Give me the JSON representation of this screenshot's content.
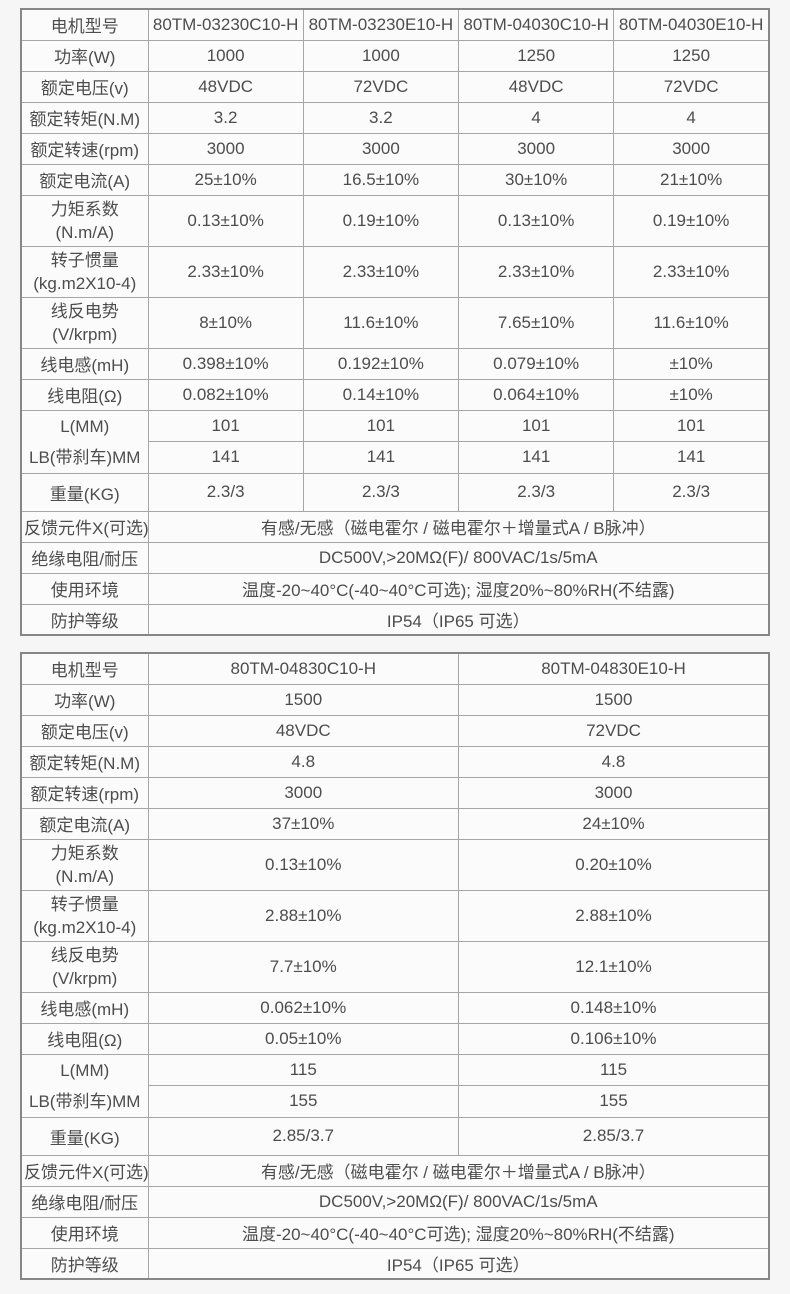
{
  "colors": {
    "page_background": "#f6f6f7",
    "cell_background": "#fbfbfc",
    "border_outer": "#878787",
    "border_inner": "#a6a6a6",
    "text": "#4d4d4d"
  },
  "tables": [
    {
      "model_row": {
        "label": "电机型号",
        "values": [
          "80TM-03230C10-H",
          "80TM-03230E10-H",
          "80TM-04030C10-H",
          "80TM-04030E10-H"
        ]
      },
      "rows": [
        {
          "label": "功率(W)",
          "values": [
            "1000",
            "1000",
            "1250",
            "1250"
          ]
        },
        {
          "label": "额定电压(v)",
          "values": [
            "48VDC",
            "72VDC",
            "48VDC",
            "72VDC"
          ]
        },
        {
          "label": "额定转矩(N.M)",
          "values": [
            "3.2",
            "3.2",
            "4",
            "4"
          ]
        },
        {
          "label": "额定转速(rpm)",
          "values": [
            "3000",
            "3000",
            "3000",
            "3000"
          ]
        },
        {
          "label": "额定电流(A)",
          "values": [
            "25±10%",
            "16.5±10%",
            "30±10%",
            "21±10%"
          ]
        },
        {
          "label": "力矩系数",
          "label2": "(N.m/A)",
          "values": [
            "0.13±10%",
            "0.19±10%",
            "0.13±10%",
            "0.19±10%"
          ]
        },
        {
          "label": "转子惯量",
          "label2": "(kg.m2X10-4)",
          "values": [
            "2.33±10%",
            "2.33±10%",
            "2.33±10%",
            "2.33±10%"
          ]
        },
        {
          "label": "线反电势",
          "label2": "(V/krpm)",
          "values": [
            "8±10%",
            "11.6±10%",
            "7.65±10%",
            "11.6±10%"
          ]
        },
        {
          "label": "线电感(mH)",
          "values": [
            "0.398±10%",
            "0.192±10%",
            "0.079±10%",
            "±10%"
          ]
        },
        {
          "label": "线电阻(Ω)",
          "values": [
            "0.082±10%",
            "0.14±10%",
            "0.064±10%",
            "±10%"
          ]
        }
      ],
      "length_rows": {
        "label_l": "L(MM)",
        "values_l": [
          "101",
          "101",
          "101",
          "101"
        ],
        "label_lb": "LB(带刹车)MM",
        "values_lb": [
          "141",
          "141",
          "141",
          "141"
        ]
      },
      "weight_row": {
        "label": "重量(KG)",
        "values": [
          "2.3/3",
          "2.3/3",
          "2.3/3",
          "2.3/3"
        ]
      },
      "full_rows": [
        {
          "label": "反馈元件X(可选)",
          "value": "有感/无感（磁电霍尔 / 磁电霍尔＋增量式A / B脉冲）"
        },
        {
          "label": "绝缘电阻/耐压",
          "value": "DC500V,>20MΩ(F)/ 800VAC/1s/5mA"
        },
        {
          "label": "使用环境",
          "value": "温度-20~40°C(-40~40°C可选); 湿度20%~80%RH(不结露)"
        },
        {
          "label": "防护等级",
          "value": "IP54（IP65 可选）"
        }
      ]
    },
    {
      "model_row": {
        "label": "电机型号",
        "values": [
          "80TM-04830C10-H",
          "80TM-04830E10-H"
        ]
      },
      "rows": [
        {
          "label": "功率(W)",
          "values": [
            "1500",
            "1500"
          ]
        },
        {
          "label": "额定电压(v)",
          "values": [
            "48VDC",
            "72VDC"
          ]
        },
        {
          "label": "额定转矩(N.M)",
          "values": [
            "4.8",
            "4.8"
          ]
        },
        {
          "label": "额定转速(rpm)",
          "values": [
            "3000",
            "3000"
          ]
        },
        {
          "label": "额定电流(A)",
          "values": [
            "37±10%",
            "24±10%"
          ]
        },
        {
          "label": "力矩系数",
          "label2": "(N.m/A)",
          "values": [
            "0.13±10%",
            "0.20±10%"
          ]
        },
        {
          "label": "转子惯量",
          "label2": "(kg.m2X10-4)",
          "values": [
            "2.88±10%",
            "2.88±10%"
          ]
        },
        {
          "label": "线反电势",
          "label2": "(V/krpm)",
          "values": [
            "7.7±10%",
            "12.1±10%"
          ]
        },
        {
          "label": "线电感(mH)",
          "values": [
            "0.062±10%",
            "0.148±10%"
          ]
        },
        {
          "label": "线电阻(Ω)",
          "values": [
            "0.05±10%",
            "0.106±10%"
          ]
        }
      ],
      "length_rows": {
        "label_l": "L(MM)",
        "values_l": [
          "115",
          "115"
        ],
        "label_lb": "LB(带刹车)MM",
        "values_lb": [
          "155",
          "155"
        ]
      },
      "weight_row": {
        "label": "重量(KG)",
        "values": [
          "2.85/3.7",
          "2.85/3.7"
        ]
      },
      "full_rows": [
        {
          "label": "反馈元件X(可选)",
          "value": "有感/无感（磁电霍尔 / 磁电霍尔＋增量式A / B脉冲）"
        },
        {
          "label": "绝缘电阻/耐压",
          "value": "DC500V,>20MΩ(F)/ 800VAC/1s/5mA"
        },
        {
          "label": "使用环境",
          "value": "温度-20~40°C(-40~40°C可选); 湿度20%~80%RH(不结露)"
        },
        {
          "label": "防护等级",
          "value": "IP54（IP65 可选）"
        }
      ]
    }
  ]
}
